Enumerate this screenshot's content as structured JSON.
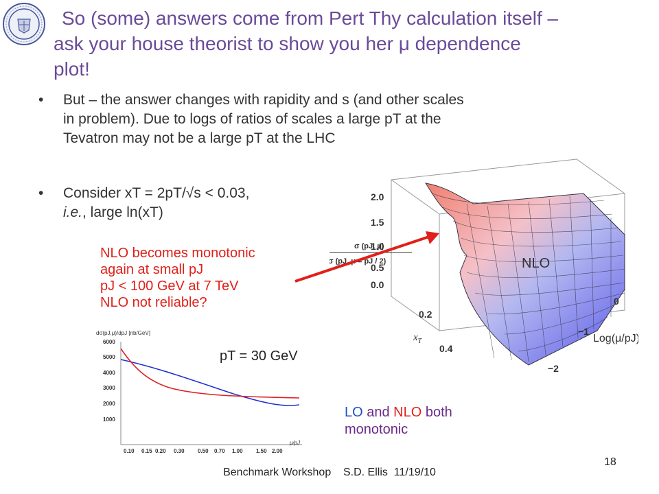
{
  "title": {
    "line1": "So (some) answers come from Pert Thy calculation itself –",
    "line2": "ask your house theorist to show you her μ dependence",
    "line3": "plot!"
  },
  "bullets": [
    {
      "line1": "But – the answer changes with rapidity and s (and other scales",
      "line2": "in problem).  Due to logs of ratios of scales a large pT at the",
      "line3": "Tevatron may not be a large pT at the LHC"
    },
    {
      "line1": "Consider xT = 2pT/√s < 0.03,",
      "line2_italic": "i.e.",
      "line2_rest": ", large ln(xT)"
    }
  ],
  "red_note": {
    "line1": "NLO becomes monotonic",
    "line2": "again at small pJ",
    "line3": "pJ < 100 GeV at 7 TeV",
    "line4": "NLO not reliable?"
  },
  "surface_plot": {
    "z_ticks": [
      "2.0",
      "1.5",
      "1.0",
      "0.5",
      "0.0"
    ],
    "x_ticks": [
      "0.2",
      "0.4"
    ],
    "y_ticks": [
      "0",
      "−1",
      "−2"
    ],
    "z_label_num": "σ (pJ, μ)",
    "z_label_den": "σ (pJ, μ = pJ / 2)",
    "x_label": "x",
    "x_label_sub": "T",
    "y_label": "Log(μ/pJ)",
    "label": "NLO",
    "colors": {
      "high": "#f08070",
      "low": "#6a6af0"
    }
  },
  "plot2d": {
    "ylabel": "dσ(pJ,μ)/dpJ [nb/GeV]",
    "xlabel": "μ/pJ",
    "y_ticks": [
      "6000",
      "5000",
      "4000",
      "3000",
      "2000",
      "1000"
    ],
    "x_ticks": [
      "0.10",
      "0.15",
      "0.20",
      "0.30",
      "0.50",
      "0.70",
      "1.00",
      "1.50",
      "2.00"
    ],
    "annotation": "pT = 30 GeV",
    "colors": {
      "lo": "#2030d0",
      "nlo": "#e02020"
    }
  },
  "lonlo": {
    "lo": "LO",
    "and": " and ",
    "nlo": "NLO",
    "both": " both",
    "line2": "monotonic"
  },
  "footer": "Benchmark Workshop    S.D. Ellis  11/19/10",
  "page_number": "18"
}
